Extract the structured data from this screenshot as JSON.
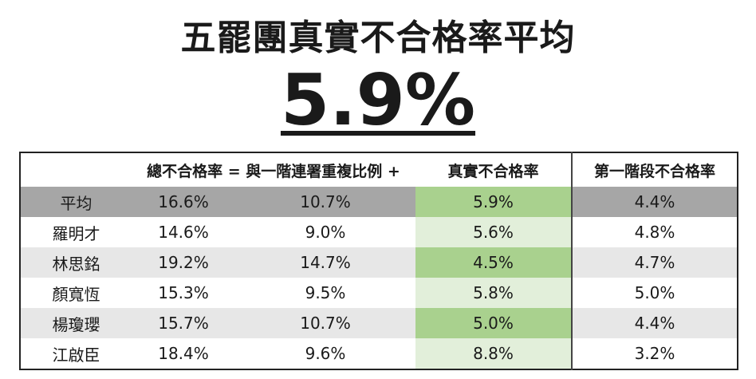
{
  "title": "五罷團真實不合格率平均",
  "headline_value": "5.9%",
  "table": {
    "columns": [
      "",
      "總不合格率 = 與一階連署重複比例 +",
      "",
      "真實不合格率",
      "第一階段不合格率"
    ],
    "rows": [
      {
        "name": "平均",
        "total": "16.6%",
        "overlap": "10.7%",
        "real": "5.9%",
        "stage1": "4.4%"
      },
      {
        "name": "羅明才",
        "total": "14.6%",
        "overlap": "9.0%",
        "real": "5.6%",
        "stage1": "4.8%"
      },
      {
        "name": "林思銘",
        "total": "19.2%",
        "overlap": "14.7%",
        "real": "4.5%",
        "stage1": "4.7%"
      },
      {
        "name": "顏寬恆",
        "total": "15.3%",
        "overlap": "9.5%",
        "real": "5.8%",
        "stage1": "5.0%"
      },
      {
        "name": "楊瓊瓔",
        "total": "15.7%",
        "overlap": "10.7%",
        "real": "5.0%",
        "stage1": "4.4%"
      },
      {
        "name": "江啟臣",
        "total": "18.4%",
        "overlap": "9.6%",
        "real": "8.8%",
        "stage1": "3.2%"
      }
    ]
  },
  "colors": {
    "average_row": "#a6a6a6",
    "alt_row": "#e7e7e7",
    "highlight_strong": "#a9d18e",
    "highlight_light": "#e2efda"
  }
}
